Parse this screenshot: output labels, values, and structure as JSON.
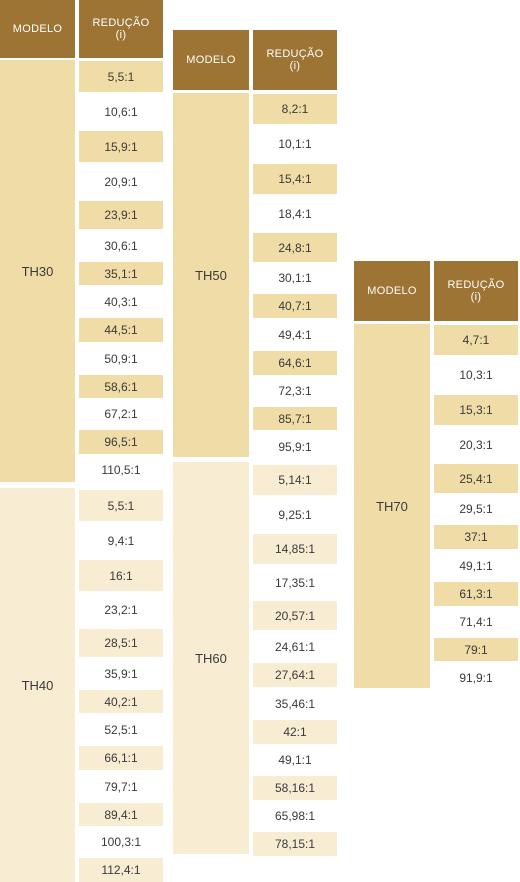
{
  "headers": {
    "modelo": "MODELO",
    "reducao": "REDUÇÃO",
    "reducao_unit": "(i)"
  },
  "tables": [
    {
      "groups": [
        {
          "model": "TH30",
          "ratios": [
            "5,5:1",
            "10,6:1",
            "15,9:1",
            "20,9:1",
            "23,9:1",
            "30,6:1",
            "35,1:1",
            "40,3:1",
            "44,5:1",
            "50,9:1",
            "58,6:1",
            "67,2:1",
            "96,5:1",
            "110,5:1"
          ]
        },
        {
          "model": "TH40",
          "ratios": [
            "5,5:1",
            "9,4:1",
            "16:1",
            "23,2:1",
            "28,5:1",
            "35,9:1",
            "40,2:1",
            "52,5:1",
            "66,1:1",
            "79,7:1",
            "89,4:1",
            "100,3:1",
            "112,4:1"
          ]
        }
      ]
    },
    {
      "groups": [
        {
          "model": "TH50",
          "ratios": [
            "8,2:1",
            "10,1:1",
            "15,4:1",
            "18,4:1",
            "24,8:1",
            "30,1:1",
            "40,7:1",
            "49,4:1",
            "64,6:1",
            "72,3:1",
            "85,7:1",
            "95,9:1"
          ]
        },
        {
          "model": "TH60",
          "ratios": [
            "5,14:1",
            "9,25:1",
            "14,85:1",
            "17,35:1",
            "20,57:1",
            "24,61:1",
            "27,64:1",
            "35,46:1",
            "42:1",
            "49,1:1",
            "58,16:1",
            "65,98:1",
            "78,15:1"
          ]
        }
      ]
    },
    {
      "groups": [
        {
          "model": "TH70",
          "ratios": [
            "4,7:1",
            "10,3:1",
            "15,3:1",
            "20,3:1",
            "25,4:1",
            "29,5:1",
            "37:1",
            "49,1:1",
            "61,3:1",
            "71,4:1",
            "79:1",
            "91,9:1"
          ]
        }
      ]
    }
  ]
}
